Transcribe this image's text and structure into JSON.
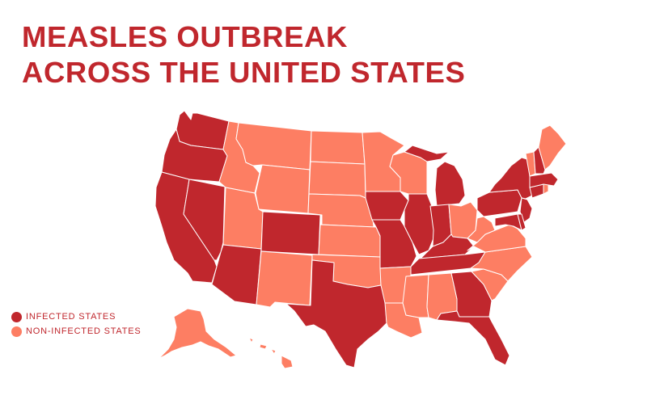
{
  "title": {
    "line1": "MEASLES OUTBREAK",
    "line2": "ACROSS THE UNITED STATES"
  },
  "colors": {
    "infected": "#c0272d",
    "non_infected": "#fd7e63",
    "title": "#c0272d",
    "border": "#ffffff"
  },
  "legend": [
    {
      "key": "infected",
      "label": "INFECTED STATES"
    },
    {
      "key": "non_infected",
      "label": "NON-INFECTED STATES"
    }
  ],
  "map_data": {
    "type": "choropleth",
    "region": "United States",
    "infected_states": [
      "WA",
      "OR",
      "CA",
      "NV",
      "AZ",
      "CO",
      "TX",
      "IA",
      "MO",
      "IL",
      "IN",
      "MI",
      "KY",
      "TN",
      "GA",
      "FL",
      "NY",
      "PA",
      "NJ",
      "MD",
      "DE",
      "CT",
      "MA",
      "NH"
    ],
    "non_infected_states": [
      "ID",
      "MT",
      "WY",
      "UT",
      "NM",
      "ND",
      "SD",
      "NE",
      "KS",
      "OK",
      "MN",
      "WI",
      "AR",
      "LA",
      "MS",
      "AL",
      "OH",
      "WV",
      "VA",
      "NC",
      "SC",
      "VT",
      "ME",
      "RI",
      "AK",
      "HI"
    ]
  }
}
